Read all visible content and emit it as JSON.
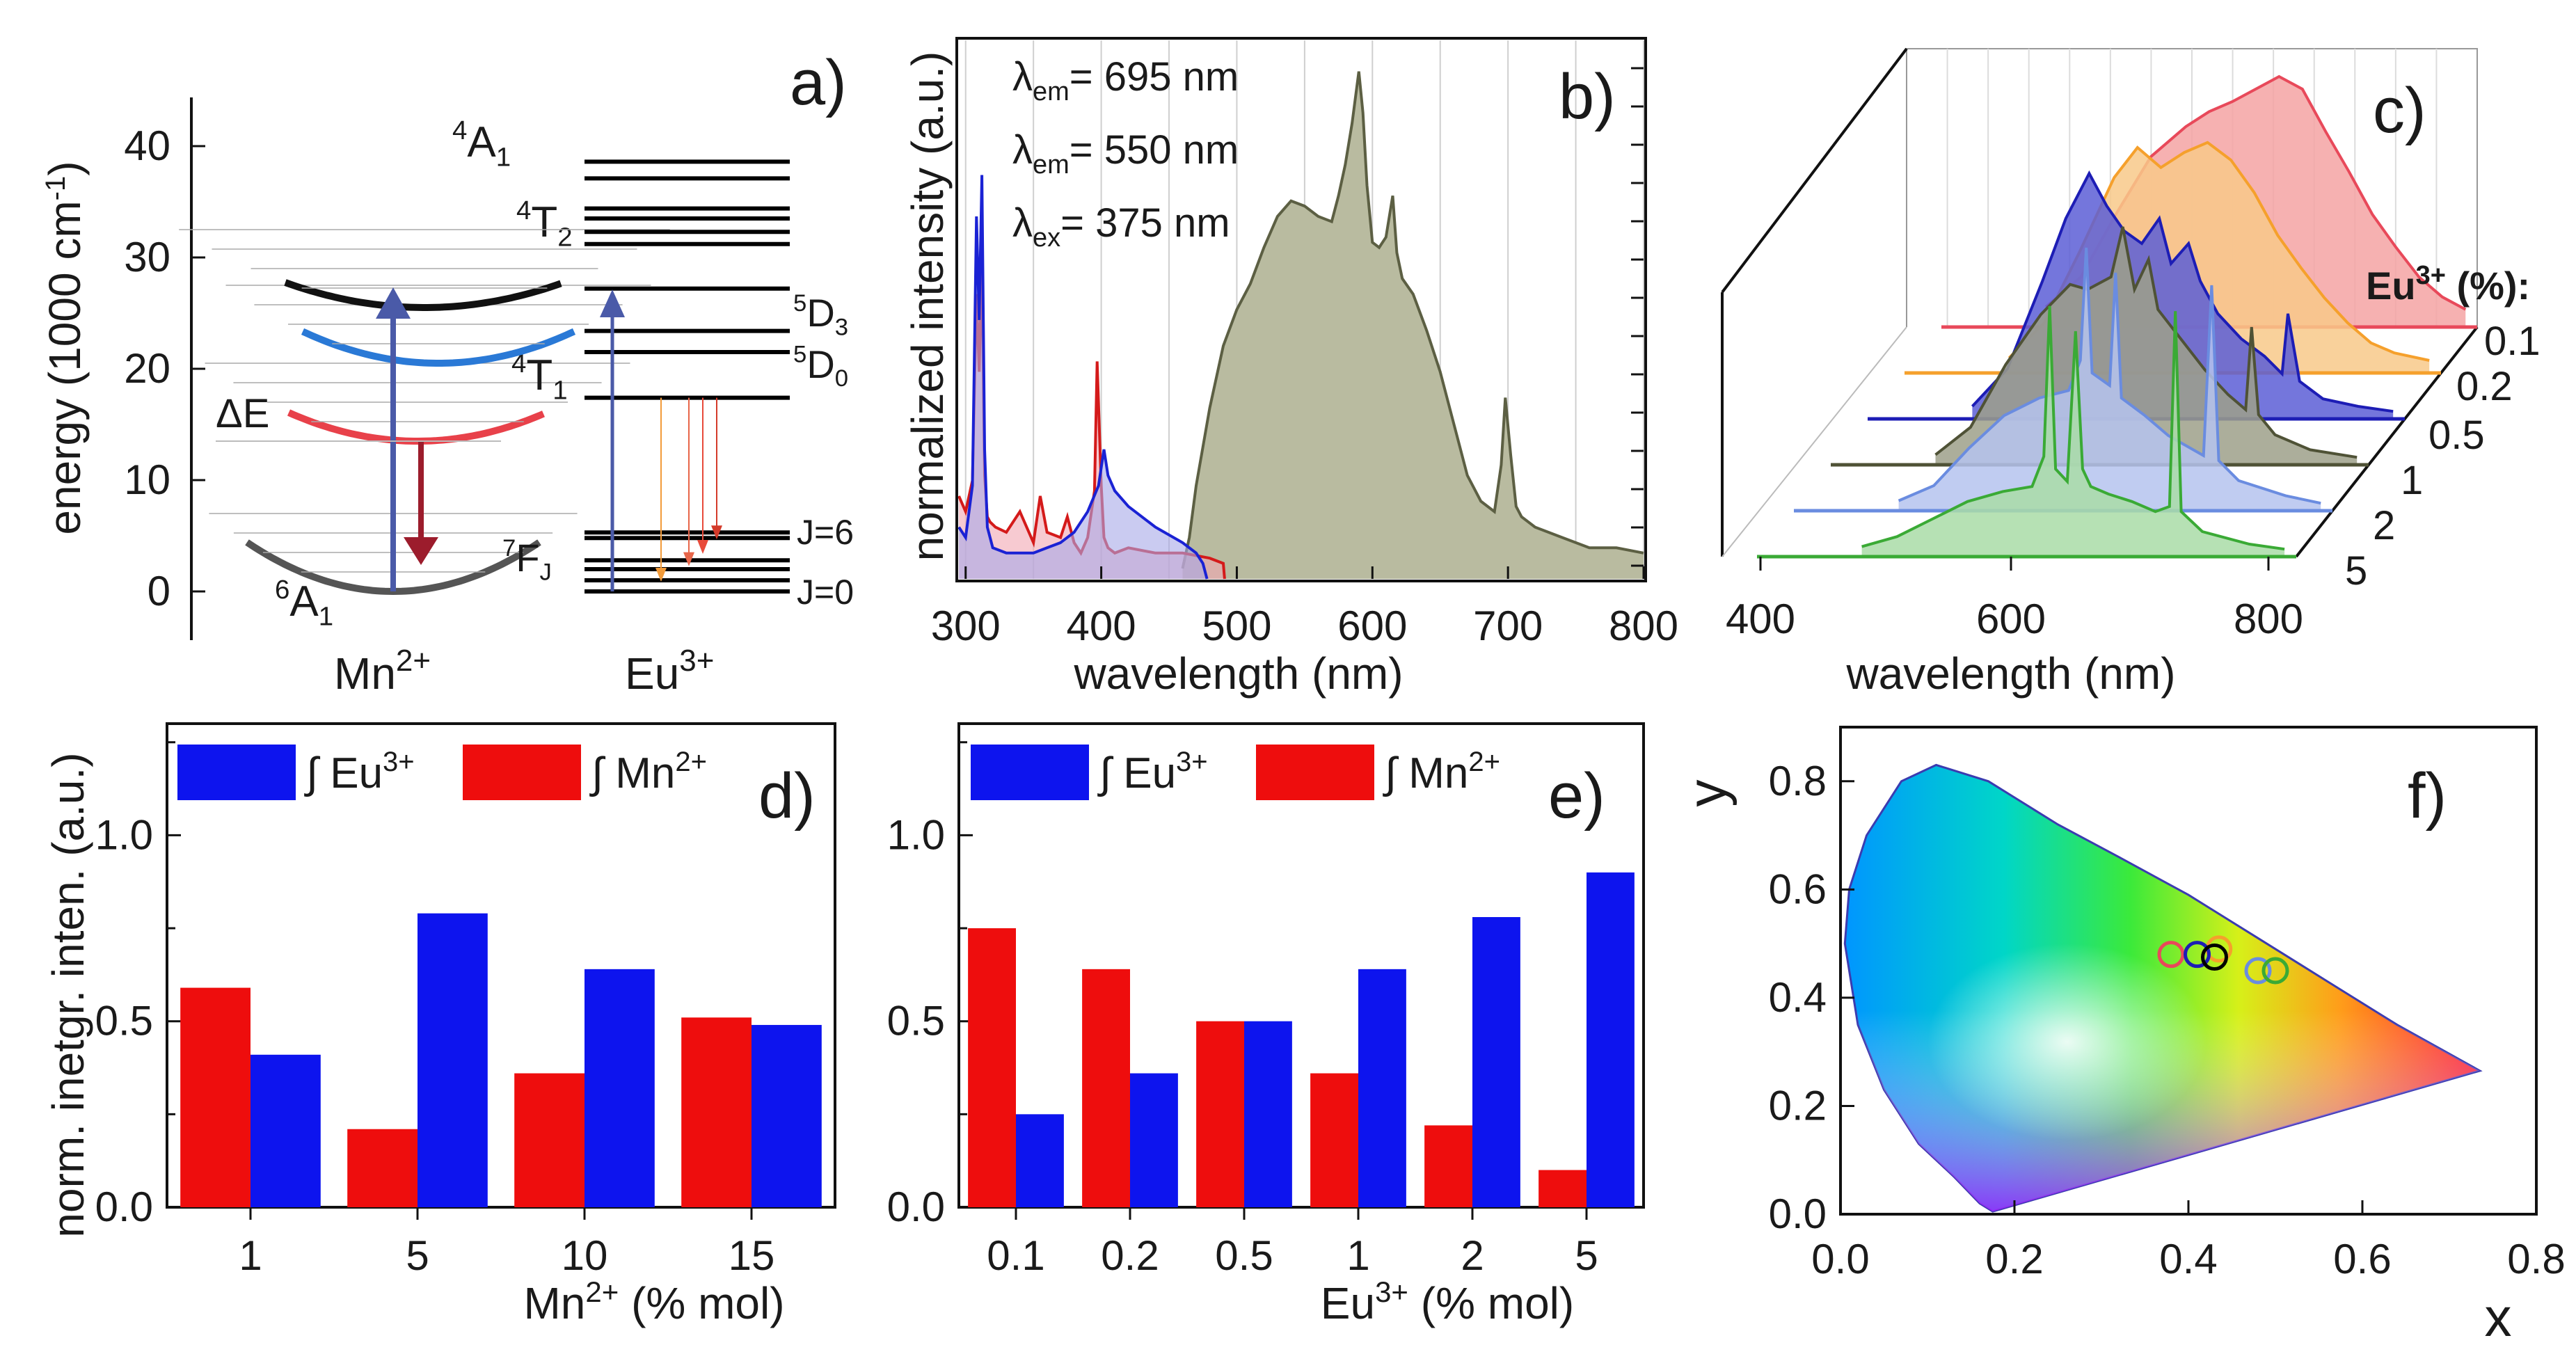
{
  "colors": {
    "red": "#e8141a",
    "blue": "#0b12e6",
    "olive": "#5c5f43",
    "olive_fill": "#b9bba0",
    "light_blue": "#7e8ee6",
    "green": "#3aaa35",
    "orange": "#f5a02c",
    "pink": "#f07a7a",
    "dark_blue": "#1d1db5"
  },
  "chart_data": [
    {
      "panel": "a)",
      "type": "energy-level-diagram",
      "ylabel": "energy (1000 cm",
      "ylabel_sup": "-1",
      "ylabel_end": ")",
      "ylim": [
        -4,
        45
      ],
      "yticks": [
        0,
        10,
        20,
        30,
        40
      ],
      "mn_label": "Mn",
      "mn_sup": "2+",
      "eu_label": "Eu",
      "eu_sup": "3+",
      "mn_curves": [
        {
          "name": "A1_6",
          "label": "A",
          "pre": "6",
          "sub": "1",
          "min_energy": 0,
          "color": "#555555"
        },
        {
          "name": "T1_4",
          "label": "T",
          "pre": "4",
          "sub": "1",
          "min_energy": 13.5,
          "color": "#e8414a"
        },
        {
          "name": "T2_4",
          "label": "T",
          "pre": "4",
          "sub": "2",
          "min_energy": 20.5,
          "color": "#2a79d6"
        },
        {
          "name": "A1_4",
          "label": "A",
          "pre": "4",
          "sub": "1",
          "min_energy": 25.5,
          "color": "#111111"
        }
      ],
      "delta_label": "ΔE",
      "eu_levels": [
        0,
        1,
        2,
        2.8,
        4.8,
        5.3,
        17.4,
        21.5,
        23.4,
        27.2,
        31.2,
        32.3,
        33.5,
        34.4,
        37.1,
        38.6
      ],
      "eu_annotations": {
        "d3": {
          "label": "D",
          "pre": "5",
          "sub": "3"
        },
        "d0": {
          "label": "D",
          "pre": "5",
          "sub": "0"
        },
        "fj": {
          "label": "F",
          "pre": "7",
          "sub": "J"
        },
        "j6": "J=6",
        "j0": "J=0"
      },
      "excitation_energy": 27
    },
    {
      "panel": "b)",
      "type": "line",
      "xlabel": "wavelength (nm)",
      "ylabel": "normalized intensity (a.u.)",
      "xlim": [
        295,
        800
      ],
      "xticks": [
        300,
        400,
        500,
        600,
        700,
        800
      ],
      "ylim": [
        0,
        1.04
      ],
      "legend": [
        {
          "label": "λ",
          "sub": "em",
          "rest": "= 695 nm",
          "color": "#d41a1a"
        },
        {
          "label": "λ",
          "sub": "em",
          "rest": "= 550 nm",
          "color": "#1a22d4"
        },
        {
          "label": "λ",
          "sub": "ex",
          "rest": "= 375 nm",
          "color": "#5c5f43"
        }
      ],
      "series": [
        {
          "name": "excitation 695 nm",
          "color": "#d41a1a",
          "fill": "#f2a6b3",
          "x": [
            295,
            300,
            305,
            308,
            310,
            312,
            314,
            316,
            318,
            322,
            330,
            340,
            350,
            355,
            360,
            370,
            375,
            380,
            385,
            390,
            395,
            397,
            400,
            402,
            405,
            410,
            420,
            440,
            460,
            480,
            490,
            491
          ],
          "y": [
            0.16,
            0.13,
            0.19,
            0.55,
            0.4,
            0.62,
            0.2,
            0.12,
            0.11,
            0.1,
            0.09,
            0.13,
            0.07,
            0.16,
            0.09,
            0.08,
            0.12,
            0.07,
            0.05,
            0.08,
            0.17,
            0.42,
            0.18,
            0.08,
            0.06,
            0.05,
            0.06,
            0.05,
            0.05,
            0.04,
            0.03,
            0.0
          ]
        },
        {
          "name": "excitation 550 nm",
          "color": "#1a22d4",
          "fill": "#a7a9e8",
          "x": [
            295,
            300,
            305,
            308,
            310,
            312,
            314,
            316,
            320,
            330,
            340,
            350,
            360,
            370,
            380,
            390,
            398,
            402,
            405,
            410,
            420,
            440,
            460,
            470,
            475,
            478
          ],
          "y": [
            0.1,
            0.08,
            0.18,
            0.7,
            0.5,
            0.78,
            0.25,
            0.1,
            0.06,
            0.05,
            0.05,
            0.05,
            0.06,
            0.07,
            0.09,
            0.13,
            0.18,
            0.25,
            0.2,
            0.17,
            0.14,
            0.1,
            0.07,
            0.05,
            0.03,
            0.0
          ]
        },
        {
          "name": "emission 375 nm",
          "color": "#5c5f43",
          "fill": "#b9bba0",
          "x": [
            460,
            465,
            470,
            480,
            490,
            500,
            510,
            520,
            530,
            540,
            550,
            560,
            570,
            575,
            580,
            585,
            590,
            593,
            596,
            600,
            605,
            610,
            615,
            618,
            622,
            630,
            640,
            650,
            660,
            670,
            680,
            690,
            695,
            698,
            702,
            706,
            710,
            720,
            740,
            760,
            780,
            800
          ],
          "y": [
            0.02,
            0.08,
            0.18,
            0.33,
            0.45,
            0.52,
            0.57,
            0.64,
            0.7,
            0.73,
            0.72,
            0.7,
            0.69,
            0.74,
            0.8,
            0.88,
            0.98,
            0.9,
            0.76,
            0.65,
            0.64,
            0.66,
            0.74,
            0.63,
            0.58,
            0.55,
            0.48,
            0.4,
            0.3,
            0.2,
            0.15,
            0.13,
            0.22,
            0.35,
            0.24,
            0.14,
            0.12,
            0.1,
            0.08,
            0.06,
            0.06,
            0.05
          ]
        }
      ]
    },
    {
      "panel": "c)",
      "type": "waterfall",
      "xlabel": "wavelength (nm)",
      "xticks": [
        400,
        600,
        800
      ],
      "z_title": "Eu",
      "z_title_sup": "3+",
      "z_title_end": " (%):",
      "series": [
        {
          "name": "0.1",
          "color": "#e8495a",
          "fill": "#f5a3a3",
          "x": [
            430,
            460,
            490,
            520,
            550,
            570,
            590,
            610,
            630,
            650,
            670,
            690,
            710,
            730,
            750,
            770,
            790
          ],
          "y": [
            0.08,
            0.2,
            0.45,
            0.68,
            0.8,
            0.86,
            0.9,
            0.95,
            1.0,
            0.95,
            0.78,
            0.62,
            0.45,
            0.32,
            0.2,
            0.12,
            0.07
          ]
        },
        {
          "name": "0.2",
          "color": "#f5a02c",
          "fill": "#f8c98a",
          "x": [
            430,
            460,
            490,
            520,
            540,
            560,
            580,
            600,
            620,
            640,
            660,
            680,
            700,
            720,
            740,
            760,
            790
          ],
          "y": [
            0.06,
            0.2,
            0.48,
            0.78,
            0.9,
            0.82,
            0.88,
            0.92,
            0.85,
            0.72,
            0.55,
            0.42,
            0.3,
            0.2,
            0.12,
            0.08,
            0.05
          ]
        },
        {
          "name": "0.5",
          "color": "#1d1db5",
          "fill": "#5c5ed6",
          "x": [
            430,
            460,
            490,
            510,
            530,
            545,
            560,
            575,
            590,
            600,
            615,
            625,
            640,
            660,
            680,
            695,
            700,
            710,
            730,
            760,
            790
          ],
          "y": [
            0.05,
            0.2,
            0.55,
            0.8,
            0.98,
            0.85,
            0.75,
            0.7,
            0.8,
            0.62,
            0.7,
            0.55,
            0.42,
            0.32,
            0.25,
            0.18,
            0.42,
            0.15,
            0.08,
            0.05,
            0.03
          ]
        },
        {
          "name": "1",
          "color": "#4f5236",
          "fill": "#9ea08a",
          "x": [
            430,
            460,
            490,
            520,
            545,
            560,
            580,
            590,
            600,
            612,
            620,
            640,
            660,
            680,
            695,
            700,
            706,
            720,
            750,
            790
          ],
          "y": [
            0.04,
            0.15,
            0.4,
            0.6,
            0.72,
            0.7,
            0.75,
            0.95,
            0.7,
            0.82,
            0.62,
            0.5,
            0.38,
            0.28,
            0.22,
            0.55,
            0.2,
            0.12,
            0.06,
            0.03
          ]
        },
        {
          "name": "2",
          "color": "#6a8ce0",
          "fill": "#b5c3ee",
          "x": [
            430,
            460,
            490,
            520,
            550,
            575,
            585,
            590,
            595,
            610,
            615,
            620,
            640,
            660,
            690,
            697,
            703,
            720,
            760,
            790
          ],
          "y": [
            0.04,
            0.1,
            0.25,
            0.38,
            0.45,
            0.48,
            0.6,
            1.05,
            0.55,
            0.5,
            0.95,
            0.45,
            0.38,
            0.3,
            0.22,
            0.9,
            0.2,
            0.12,
            0.06,
            0.03
          ]
        },
        {
          "name": "5",
          "color": "#3aaa35",
          "fill": "#a9dca7",
          "x": [
            430,
            460,
            490,
            520,
            550,
            575,
            585,
            590,
            595,
            605,
            612,
            618,
            625,
            640,
            660,
            680,
            692,
            697,
            702,
            720,
            760,
            790
          ],
          "y": [
            0.04,
            0.08,
            0.15,
            0.22,
            0.26,
            0.28,
            0.4,
            1.0,
            0.35,
            0.3,
            0.9,
            0.35,
            0.28,
            0.25,
            0.22,
            0.18,
            0.2,
            0.98,
            0.18,
            0.1,
            0.05,
            0.03
          ]
        }
      ]
    },
    {
      "panel": "d)",
      "type": "bar",
      "xlabel": "Mn",
      "xlabel_sup": "2+",
      "xlabel_end": " (% mol)",
      "ylabel": "norm. inetgr. inten. (a.u.)",
      "categories": [
        "1",
        "5",
        "10",
        "15"
      ],
      "ylim": [
        0,
        1.3
      ],
      "yticks": [
        "0.0",
        "0.5",
        "1.0"
      ],
      "legend_eu": "∫ Eu",
      "legend_eu_sup": "3+",
      "legend_mn": "∫ Mn",
      "legend_mn_sup": "2+",
      "series": [
        {
          "name": "Mn2+",
          "color": "#ee0d0d",
          "values": [
            0.59,
            0.21,
            0.36,
            0.51
          ]
        },
        {
          "name": "Eu3+",
          "color": "#0d14ee",
          "values": [
            0.41,
            0.79,
            0.64,
            0.49
          ]
        }
      ]
    },
    {
      "panel": "e)",
      "type": "bar",
      "xlabel": "Eu",
      "xlabel_sup": "3+",
      "xlabel_end": " (% mol)",
      "categories": [
        "0.1",
        "0.2",
        "0.5",
        "1",
        "2",
        "5"
      ],
      "ylim": [
        0,
        1.3
      ],
      "yticks": [
        "0.0",
        "0.5",
        "1.0"
      ],
      "legend_eu": "∫ Eu",
      "legend_eu_sup": "3+",
      "legend_mn": "∫ Mn",
      "legend_mn_sup": "2+",
      "series": [
        {
          "name": "Mn2+",
          "color": "#ee0d0d",
          "values": [
            0.75,
            0.64,
            0.5,
            0.36,
            0.22,
            0.1
          ]
        },
        {
          "name": "Eu3+",
          "color": "#0d14ee",
          "values": [
            0.25,
            0.36,
            0.5,
            0.64,
            0.78,
            0.9
          ]
        }
      ]
    },
    {
      "panel": "f)",
      "type": "scatter",
      "xlabel": "x",
      "ylabel": "y",
      "xlim": [
        0,
        0.8
      ],
      "ylim": [
        0,
        0.9
      ],
      "xticks": [
        "0.0",
        "0.2",
        "0.4",
        "0.6",
        "0.8"
      ],
      "yticks": [
        "0.0",
        "0.2",
        "0.4",
        "0.6",
        "0.8"
      ],
      "points": [
        {
          "name": "0.1",
          "x": 0.38,
          "y": 0.48,
          "color": "#e8495a"
        },
        {
          "name": "0.2",
          "x": 0.435,
          "y": 0.49,
          "color": "#f5a02c"
        },
        {
          "name": "0.5",
          "x": 0.41,
          "y": 0.48,
          "color": "#1d1db5"
        },
        {
          "name": "1",
          "x": 0.43,
          "y": 0.475,
          "color": "#000000"
        },
        {
          "name": "2",
          "x": 0.48,
          "y": 0.45,
          "color": "#6a8ce0"
        },
        {
          "name": "5",
          "x": 0.5,
          "y": 0.45,
          "color": "#3aaa35"
        }
      ]
    }
  ]
}
